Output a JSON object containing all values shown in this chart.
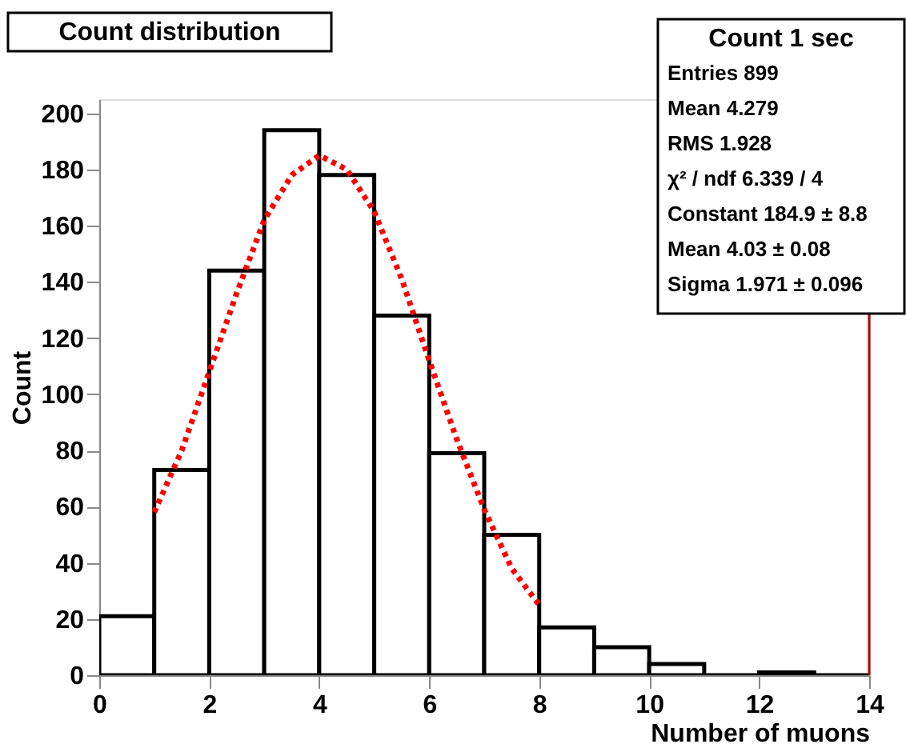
{
  "chart_data": {
    "type": "histogram",
    "title": "Count distribution",
    "xlabel": "Number of muons",
    "ylabel": "Count",
    "bins": [
      0,
      1,
      2,
      3,
      4,
      5,
      6,
      7,
      8,
      9,
      10,
      11,
      12,
      13,
      14
    ],
    "values": [
      21,
      73,
      144,
      194,
      178,
      128,
      79,
      50,
      17,
      10,
      4,
      0,
      1,
      0
    ],
    "color": "#000000",
    "series": [
      {
        "type": "line",
        "color": "#ff0000",
        "line_style": "dotted",
        "x": [
          1,
          1.5,
          2,
          2.5,
          3,
          3.5,
          4,
          4.5,
          5,
          5.5,
          6,
          6.5,
          7,
          7.5,
          8
        ],
        "values": [
          58,
          80,
          108,
          136,
          162,
          178,
          185,
          180,
          165,
          141,
          112,
          84,
          59,
          38,
          25
        ]
      }
    ],
    "ref_lines": [
      {
        "axis": "x",
        "value": 14,
        "color": "#aa0000"
      }
    ],
    "annotations": [
      "Count 1 sec",
      "Entries 899",
      "Mean 4.279",
      "RMS 1.928",
      "χ² / ndf 6.339 / 4",
      "Constant 184.9 ± 8.8",
      "Mean 4.03 ± 0.08",
      "Sigma 1.971 ± 0.096"
    ],
    "xlim": [
      0,
      14
    ],
    "xticks": [
      0,
      2,
      4,
      6,
      8,
      10,
      12,
      14
    ],
    "ylim": [
      0,
      205
    ],
    "yticks": [
      0,
      20,
      40,
      60,
      80,
      100,
      120,
      140,
      160,
      180,
      200
    ],
    "grid": false
  }
}
